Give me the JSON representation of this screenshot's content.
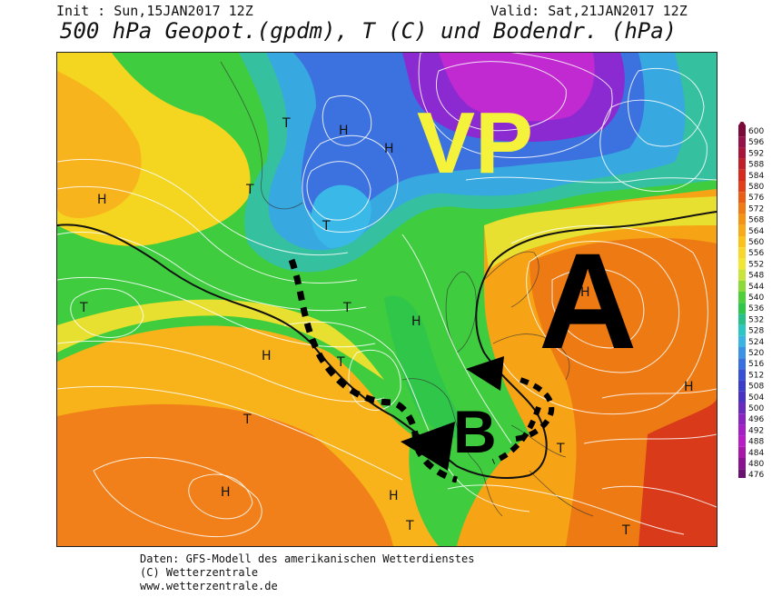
{
  "header": {
    "init": "Init : Sun,15JAN2017 12Z",
    "valid": "Valid: Sat,21JAN2017 12Z",
    "title": "500 hPa Geopot.(gpdm), T (C) und Bodendr. (hPa)"
  },
  "colors": {
    "annotation_yellow": "#f4f23a",
    "annotation_black": "#000000",
    "isobar": "#ffffff"
  },
  "overlay": {
    "vp_label": "VP",
    "a_label": "A",
    "b_label": "B"
  },
  "pressure_labels": {
    "high": "H",
    "low": "T"
  },
  "scale": {
    "values": [
      "600",
      "596",
      "592",
      "588",
      "584",
      "580",
      "576",
      "572",
      "568",
      "564",
      "560",
      "556",
      "552",
      "548",
      "544",
      "540",
      "536",
      "532",
      "528",
      "524",
      "520",
      "516",
      "512",
      "508",
      "504",
      "500",
      "496",
      "492",
      "488",
      "484",
      "480",
      "476"
    ],
    "colors": [
      "#7a0a3a",
      "#93124a",
      "#a8153a",
      "#c01f2a",
      "#d62a1e",
      "#e2401a",
      "#ea5d16",
      "#f07a14",
      "#f59414",
      "#f8ab18",
      "#fbc21c",
      "#fad62a",
      "#f2e634",
      "#c9e43a",
      "#8cd93a",
      "#4fcf3a",
      "#2fc64a",
      "#28c08a",
      "#2cc6c4",
      "#3bb4e4",
      "#3c93e6",
      "#3a6fe0",
      "#3850d6",
      "#3a3dc8",
      "#4a32c2",
      "#6a2abe",
      "#8a24c0",
      "#a420c4",
      "#b81cc4",
      "#a818a8",
      "#8a1490",
      "#6a1070"
    ]
  },
  "footer": {
    "line1": "Daten: GFS-Modell des amerikanischen Wetterdienstes",
    "line2": "(C) Wetterzentrale",
    "line3": "www.wetterzentrale.de"
  }
}
